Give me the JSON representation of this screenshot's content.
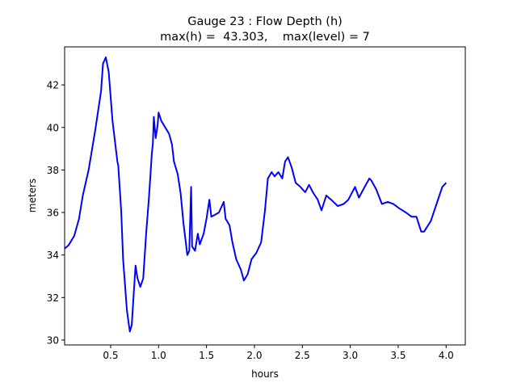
{
  "chart_data": {
    "type": "line",
    "title": "Gauge 23 : Flow Depth (h)",
    "subtitle": "max(h) =  43.303,    max(level) = 7",
    "xlabel": "hours",
    "ylabel": "meters",
    "xlim": [
      0.02,
      4.2
    ],
    "ylim": [
      29.77,
      43.79
    ],
    "xticks": [
      0.5,
      1.0,
      1.5,
      2.0,
      2.5,
      3.0,
      3.5,
      4.0
    ],
    "xtick_labels": [
      "0.5",
      "1.0",
      "1.5",
      "2.0",
      "2.5",
      "3.0",
      "3.5",
      "4.0"
    ],
    "yticks": [
      30,
      32,
      34,
      36,
      38,
      40,
      42
    ],
    "ytick_labels": [
      "30",
      "32",
      "34",
      "36",
      "38",
      "40",
      "42"
    ],
    "grid": false,
    "series": [
      {
        "color": "#0000ff",
        "x": [
          0.02,
          0.06,
          0.12,
          0.17,
          0.21,
          0.27,
          0.34,
          0.4,
          0.42,
          0.45,
          0.48,
          0.52,
          0.57,
          0.58,
          0.61,
          0.63,
          0.67,
          0.7,
          0.72,
          0.74,
          0.76,
          0.78,
          0.81,
          0.84,
          0.87,
          0.9,
          0.93,
          0.94,
          0.95,
          0.97,
          0.99,
          1.0,
          1.03,
          1.07,
          1.11,
          1.14,
          1.16,
          1.2,
          1.23,
          1.26,
          1.3,
          1.32,
          1.34,
          1.35,
          1.38,
          1.41,
          1.43,
          1.47,
          1.5,
          1.53,
          1.55,
          1.59,
          1.63,
          1.68,
          1.7,
          1.74,
          1.77,
          1.81,
          1.86,
          1.89,
          1.93,
          1.97,
          2.02,
          2.07,
          2.11,
          2.14,
          2.18,
          2.21,
          2.25,
          2.29,
          2.32,
          2.35,
          2.39,
          2.43,
          2.48,
          2.53,
          2.57,
          2.61,
          2.66,
          2.7,
          2.75,
          2.8,
          2.87,
          2.93,
          2.98,
          3.05,
          3.09,
          3.15,
          3.2,
          3.22,
          3.27,
          3.33,
          3.39,
          3.45,
          3.51,
          3.58,
          3.64,
          3.69,
          3.74,
          3.77,
          3.84,
          3.9,
          3.96,
          4.0
        ],
        "y": [
          34.3,
          34.45,
          34.9,
          35.7,
          36.8,
          38.0,
          39.9,
          41.7,
          43.0,
          43.3,
          42.6,
          40.3,
          38.4,
          38.2,
          36.1,
          33.8,
          31.4,
          30.4,
          30.7,
          32.1,
          33.5,
          32.9,
          32.5,
          32.9,
          35.0,
          36.7,
          38.8,
          39.2,
          40.5,
          39.5,
          40.1,
          40.7,
          40.3,
          40.0,
          39.7,
          39.2,
          38.4,
          37.8,
          36.9,
          35.5,
          34.0,
          34.2,
          37.2,
          34.4,
          34.2,
          35.0,
          34.5,
          35.0,
          35.7,
          36.6,
          35.8,
          35.9,
          36.0,
          36.5,
          35.7,
          35.4,
          34.6,
          33.8,
          33.3,
          32.8,
          33.1,
          33.8,
          34.1,
          34.6,
          36.1,
          37.6,
          37.9,
          37.7,
          37.9,
          37.6,
          38.4,
          38.6,
          38.1,
          37.4,
          37.2,
          36.95,
          37.3,
          36.95,
          36.6,
          36.1,
          36.8,
          36.6,
          36.3,
          36.4,
          36.6,
          37.2,
          36.7,
          37.2,
          37.6,
          37.5,
          37.1,
          36.4,
          36.5,
          36.4,
          36.2,
          36.0,
          35.8,
          35.8,
          35.1,
          35.1,
          35.6,
          36.4,
          37.2,
          37.4
        ]
      }
    ]
  }
}
